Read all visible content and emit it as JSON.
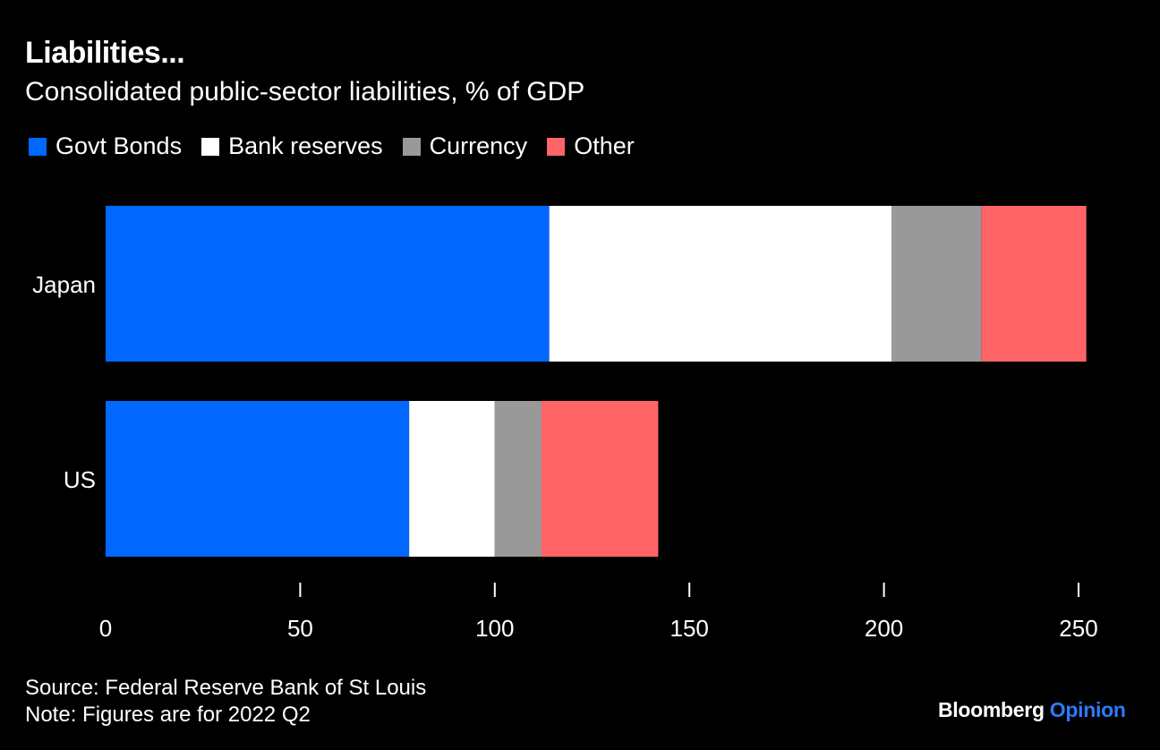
{
  "header": {
    "title": "Liabilities...",
    "subtitle": "Consolidated public-sector liabilities, % of GDP"
  },
  "footer": {
    "source": "Source: Federal Reserve Bank of St Louis",
    "note": "Note: Figures are for 2022 Q2"
  },
  "brand": {
    "name": "Bloomberg",
    "product": "Opinion",
    "name_color": "#ffffff",
    "product_color": "#2b7bff"
  },
  "chart_data": {
    "type": "bar",
    "orientation": "horizontal",
    "stacked": true,
    "categories": [
      "Japan",
      "US"
    ],
    "series": [
      {
        "name": "Govt Bonds",
        "color": "#0068ff",
        "values": [
          114,
          78
        ]
      },
      {
        "name": "Bank reserves",
        "color": "#ffffff",
        "values": [
          88,
          22
        ]
      },
      {
        "name": "Currency",
        "color": "#999999",
        "values": [
          23,
          12
        ]
      },
      {
        "name": "Other",
        "color": "#ff6467",
        "values": [
          27,
          30
        ]
      }
    ],
    "xlim": [
      0,
      250
    ],
    "xticks": [
      0,
      50,
      100,
      150,
      200,
      250
    ],
    "tick_labels": [
      "0",
      "50",
      "100",
      "150",
      "200",
      "250"
    ],
    "xlabel": "",
    "ylabel": "",
    "grid": false,
    "legend_position": "top-left"
  }
}
